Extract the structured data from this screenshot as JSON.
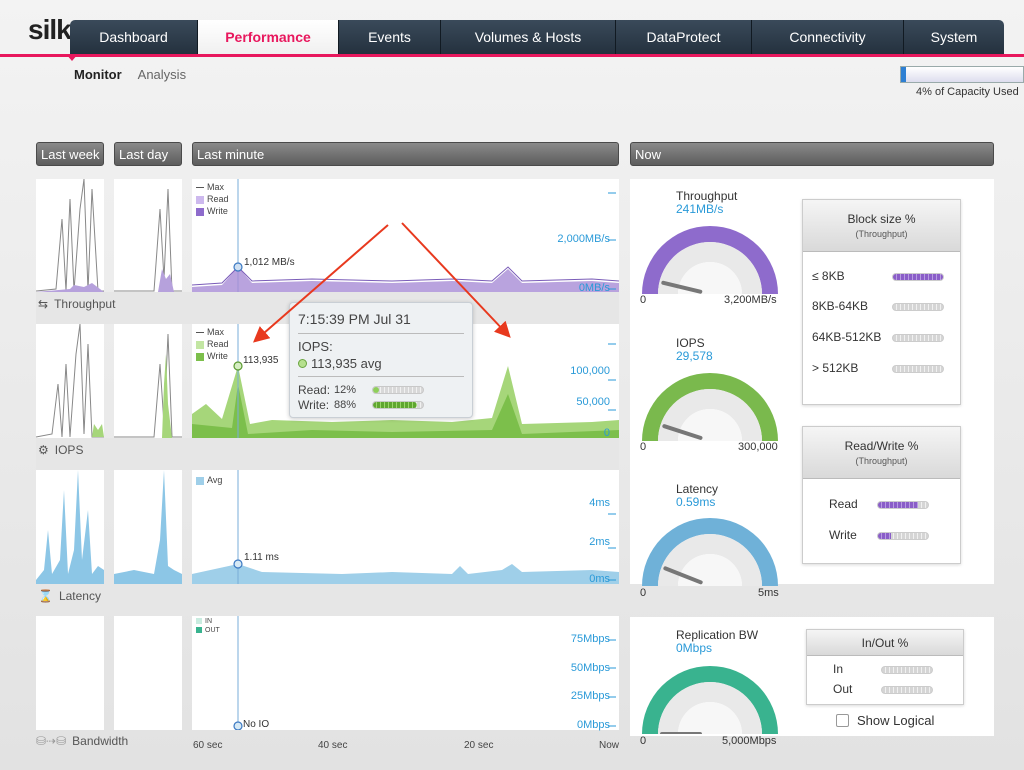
{
  "app": {
    "logo": "silk"
  },
  "nav": {
    "tabs": [
      {
        "label": "Dashboard",
        "active": false
      },
      {
        "label": "Performance",
        "active": true
      },
      {
        "label": "Events",
        "active": false
      },
      {
        "label": "Volumes & Hosts",
        "active": false
      },
      {
        "label": "DataProtect",
        "active": false
      },
      {
        "label": "Connectivity",
        "active": false
      },
      {
        "label": "System",
        "active": false
      }
    ]
  },
  "subnav": {
    "monitor": "Monitor",
    "analysis": "Analysis"
  },
  "capacity": {
    "label": "4% of Capacity Used",
    "percent": 4
  },
  "headers": {
    "last_week": "Last week",
    "last_day": "Last day",
    "last_minute": "Last minute",
    "now": "Now"
  },
  "rows": {
    "throughput": {
      "label": "Throughput",
      "legend": [
        "Max",
        "Read",
        "Write"
      ],
      "axis": [
        "2,000MB/s",
        "0MB/s"
      ],
      "marker": "1,012 MB/s"
    },
    "iops": {
      "label": "IOPS",
      "legend": [
        "Max",
        "Read",
        "Write"
      ],
      "axis": [
        "100,000",
        "50,000",
        "0"
      ],
      "marker": "113,935"
    },
    "latency": {
      "label": "Latency",
      "legend": [
        "Avg"
      ],
      "axis": [
        "4ms",
        "2ms",
        "0ms"
      ],
      "marker": "1.11 ms"
    },
    "bandwidth": {
      "label": "Bandwidth",
      "legend": [
        "IN",
        "OUT"
      ],
      "axis": [
        "75Mbps",
        "50Mbps",
        "25Mbps",
        "0Mbps"
      ],
      "marker": "No IO"
    }
  },
  "xaxis": [
    "60 sec",
    "40 sec",
    "20 sec",
    "Now"
  ],
  "tooltip": {
    "time": "7:15:39 PM Jul 31",
    "metric": "IOPS:",
    "avg": "113,935 avg",
    "read_label": "Read:",
    "read_pct": "12%",
    "read_value": 12,
    "write_label": "Write:",
    "write_pct": "88%",
    "write_value": 88
  },
  "gauges": {
    "throughput": {
      "title": "Throughput",
      "value": "241MB/s",
      "min": "0",
      "max": "3,200MB/s",
      "level": 0.075,
      "color": "#8e6bcc"
    },
    "iops": {
      "title": "IOPS",
      "value": "29,578",
      "min": "0",
      "max": "300,000",
      "level": 0.1,
      "color": "#7ab94d"
    },
    "latency": {
      "title": "Latency",
      "value": "0.59ms",
      "min": "0",
      "max": "5ms",
      "level": 0.12,
      "color": "#6fb1d8"
    },
    "replication": {
      "title": "Replication BW",
      "value": "0Mbps",
      "min": "0",
      "max": "5,000Mbps",
      "level": 0.0,
      "color": "#39b38f"
    }
  },
  "block_size": {
    "title": "Block size %",
    "subtitle": "(Throughput)",
    "rows": [
      {
        "label": "≤ 8KB",
        "value": 100
      },
      {
        "label": "8KB-64KB",
        "value": 0
      },
      {
        "label": "64KB-512KB",
        "value": 0
      },
      {
        "label": "> 512KB",
        "value": 0
      }
    ]
  },
  "read_write": {
    "title": "Read/Write %",
    "subtitle": "(Throughput)",
    "rows": [
      {
        "label": "Read",
        "value": 80
      },
      {
        "label": "Write",
        "value": 25
      }
    ]
  },
  "in_out": {
    "title": "In/Out %",
    "rows": [
      {
        "label": "In",
        "value": 0
      },
      {
        "label": "Out",
        "value": 0
      }
    ]
  },
  "show_logical": "Show Logical"
}
